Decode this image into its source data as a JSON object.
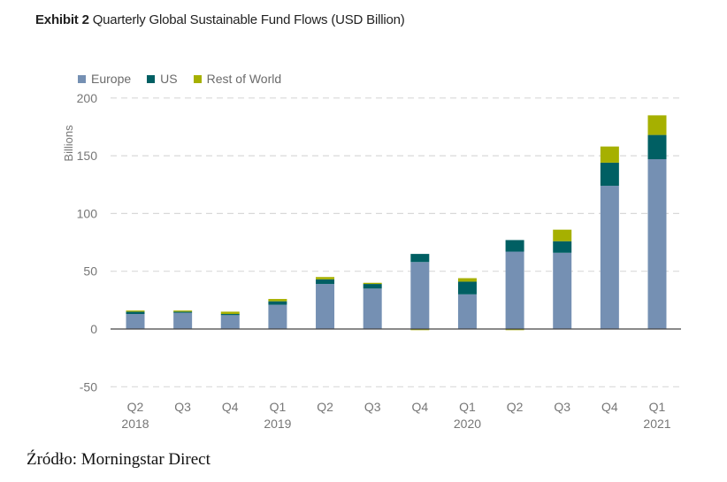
{
  "title": {
    "bold": "Exhibit 2",
    "rest": "Quarterly Global Sustainable Fund Flows (USD Billion)"
  },
  "source": "Źródło: Morningstar Direct",
  "chart_data": {
    "type": "bar",
    "stacked": true,
    "title": "Exhibit 2 Quarterly Global Sustainable Fund Flows (USD Billion)",
    "xlabel": "",
    "ylabel": "Billions",
    "ylim": [
      -50,
      200
    ],
    "yticks": [
      -50,
      0,
      50,
      100,
      150,
      200
    ],
    "grid": true,
    "legend_position": "top-left",
    "categories": [
      "Q2 2018",
      "Q3 2018",
      "Q4 2018",
      "Q1 2019",
      "Q2 2019",
      "Q3 2019",
      "Q4 2019",
      "Q1 2020",
      "Q2 2020",
      "Q3 2020",
      "Q4 2020",
      "Q1 2021"
    ],
    "category_labels": [
      [
        "Q2",
        "2018"
      ],
      [
        "Q3",
        ""
      ],
      [
        "Q4",
        ""
      ],
      [
        "Q1",
        "2019"
      ],
      [
        "Q2",
        ""
      ],
      [
        "Q3",
        ""
      ],
      [
        "Q4",
        ""
      ],
      [
        "Q1",
        "2020"
      ],
      [
        "Q2",
        ""
      ],
      [
        "Q3",
        ""
      ],
      [
        "Q4",
        ""
      ],
      [
        "Q1",
        "2021"
      ]
    ],
    "series": [
      {
        "name": "Europe",
        "color": "#7590b3",
        "values": [
          13,
          14,
          12,
          21,
          39,
          35,
          58,
          30,
          67,
          66,
          124,
          147
        ]
      },
      {
        "name": "US",
        "color": "#005f63",
        "values": [
          2,
          1,
          1,
          3,
          4,
          4,
          7,
          11,
          10,
          10,
          20,
          21
        ]
      },
      {
        "name": "Rest of World",
        "color": "#a6b000",
        "values": [
          1,
          1,
          2,
          2,
          2,
          1,
          -1,
          3,
          -1,
          10,
          14,
          17
        ]
      }
    ]
  }
}
